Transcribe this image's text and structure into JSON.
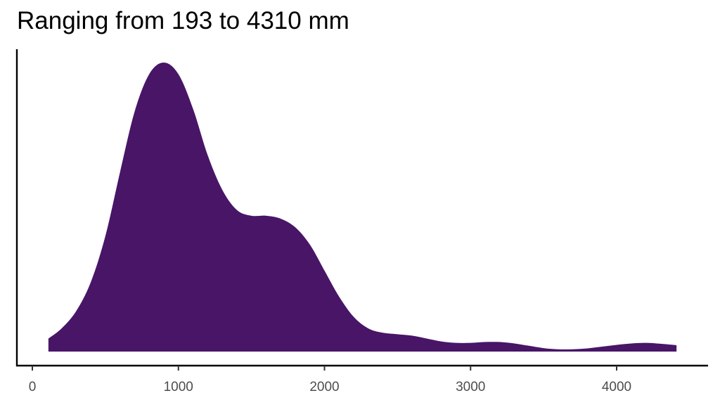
{
  "chart_data": {
    "type": "area",
    "subtype": "density",
    "title": "Ranging from 193 to 4310 mm",
    "xlabel": "",
    "ylabel": "",
    "xlim": [
      0,
      4500
    ],
    "x_ticks": [
      0,
      1000,
      2000,
      3000,
      4000
    ],
    "x_tick_labels": [
      "0",
      "1000",
      "2000",
      "3000",
      "4000"
    ],
    "y_ticks": [],
    "grid": false,
    "legend": null,
    "fill_color": "#481567",
    "y_units": "relative density (peak = 1.0)",
    "x": [
      110,
      200,
      300,
      400,
      500,
      600,
      700,
      800,
      900,
      1000,
      1100,
      1200,
      1300,
      1400,
      1500,
      1600,
      1700,
      1800,
      1900,
      2000,
      2100,
      2200,
      2300,
      2400,
      2500,
      2600,
      2700,
      2800,
      2900,
      3000,
      3100,
      3200,
      3300,
      3400,
      3500,
      3600,
      3700,
      3800,
      3900,
      4000,
      4100,
      4200,
      4300,
      4410
    ],
    "values": [
      0.045,
      0.08,
      0.14,
      0.24,
      0.4,
      0.62,
      0.83,
      0.96,
      1.0,
      0.96,
      0.84,
      0.68,
      0.56,
      0.49,
      0.47,
      0.47,
      0.46,
      0.43,
      0.37,
      0.28,
      0.19,
      0.12,
      0.08,
      0.065,
      0.06,
      0.055,
      0.045,
      0.035,
      0.03,
      0.03,
      0.033,
      0.033,
      0.028,
      0.02,
      0.012,
      0.008,
      0.008,
      0.011,
      0.017,
      0.023,
      0.028,
      0.03,
      0.027,
      0.022
    ]
  }
}
